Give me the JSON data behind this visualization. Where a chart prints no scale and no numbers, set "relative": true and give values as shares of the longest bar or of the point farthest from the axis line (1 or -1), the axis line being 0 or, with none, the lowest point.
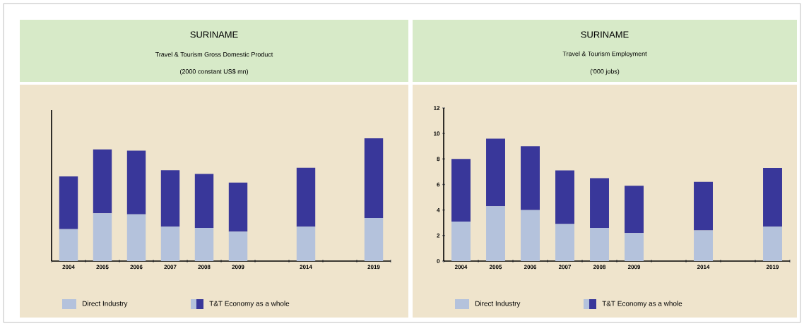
{
  "chart_data": [
    {
      "type": "bar",
      "title": "SURINAME",
      "subtitle": "Travel & Tourism Gross Domestic Product",
      "annotations": [
        "(2000 constant US$ mn)"
      ],
      "categories": [
        "2004",
        "2005",
        "2006",
        "2007",
        "2008",
        "2009",
        null,
        "2014",
        null,
        "2019"
      ],
      "stacked": true,
      "relative": true,
      "legend": "bottom",
      "series": [
        {
          "name": "Direct  Industry",
          "color": "#b4c2dc",
          "values": [
            0.26,
            0.39,
            0.38,
            0.28,
            0.27,
            0.24,
            null,
            0.28,
            null,
            0.35
          ]
        },
        {
          "name": "T&T Economy as a whole",
          "color": "#39379a",
          "values": [
            0.43,
            0.52,
            0.52,
            0.46,
            0.44,
            0.4,
            null,
            0.48,
            null,
            0.65
          ]
        }
      ]
    },
    {
      "type": "bar",
      "title": "SURINAME",
      "subtitle": "Travel & Tourism Employment",
      "annotations": [
        "('000 jobs)"
      ],
      "categories": [
        "2004",
        "2005",
        "2006",
        "2007",
        "2008",
        "2009",
        null,
        "2014",
        null,
        "2019"
      ],
      "stacked": true,
      "legend": "bottom",
      "ylim": [
        0,
        12
      ],
      "yticks": [
        0,
        2,
        4,
        6,
        8,
        10,
        12
      ],
      "series": [
        {
          "name": "Direct Industry",
          "color": "#b4c2dc",
          "values": [
            3.1,
            4.3,
            4.0,
            2.9,
            2.6,
            2.2,
            null,
            2.4,
            null,
            2.7
          ]
        },
        {
          "name": "T&T Economy as a whole",
          "color": "#39379a",
          "values": [
            4.9,
            5.3,
            5.0,
            4.2,
            3.9,
            3.7,
            null,
            3.8,
            null,
            4.6
          ]
        }
      ]
    }
  ]
}
